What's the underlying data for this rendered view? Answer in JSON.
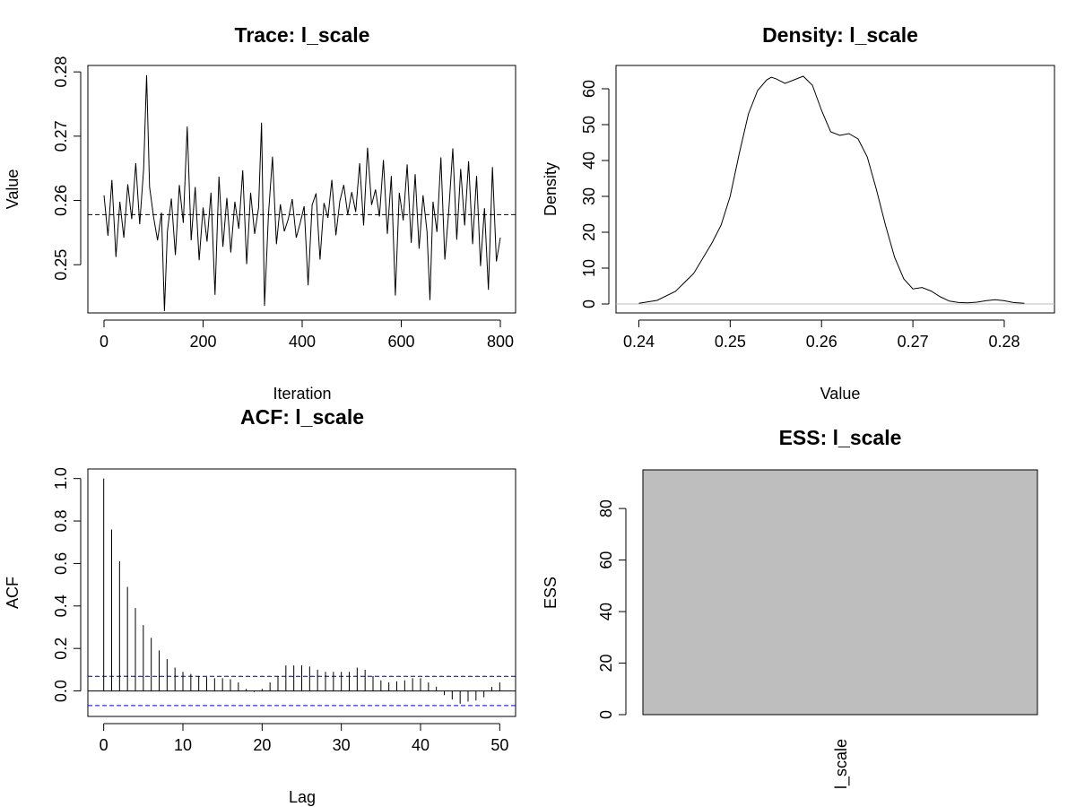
{
  "chart_data": [
    {
      "type": "line",
      "title": "Trace: l_scale",
      "xlabel": "Iteration",
      "ylabel": "Value",
      "xlim": [
        0,
        800
      ],
      "ylim": [
        0.2425,
        0.281
      ],
      "xticks": [
        "0",
        "200",
        "400",
        "600",
        "800"
      ],
      "yticks": [
        "0.25",
        "0.26",
        "0.27",
        "0.28"
      ],
      "mean_line": 0.2578,
      "mean_line_style": "dashed",
      "x": [
        0,
        8,
        16,
        24,
        32,
        40,
        48,
        56,
        64,
        72,
        80,
        86,
        92,
        100,
        108,
        116,
        122,
        128,
        136,
        144,
        152,
        160,
        168,
        176,
        184,
        192,
        200,
        208,
        216,
        224,
        232,
        240,
        248,
        256,
        264,
        272,
        280,
        288,
        296,
        304,
        312,
        318,
        324,
        332,
        340,
        348,
        356,
        364,
        372,
        380,
        388,
        396,
        404,
        412,
        420,
        428,
        436,
        444,
        452,
        460,
        468,
        476,
        484,
        492,
        500,
        508,
        516,
        524,
        532,
        540,
        548,
        556,
        564,
        572,
        580,
        588,
        596,
        604,
        612,
        620,
        628,
        636,
        644,
        652,
        658,
        664,
        672,
        680,
        688,
        696,
        704,
        712,
        720,
        728,
        736,
        744,
        752,
        760,
        768,
        776,
        784,
        792,
        800
      ],
      "y": [
        0.2608,
        0.2545,
        0.2632,
        0.2512,
        0.2598,
        0.2542,
        0.2625,
        0.2571,
        0.2658,
        0.2563,
        0.2649,
        0.2795,
        0.2621,
        0.2574,
        0.2538,
        0.2581,
        0.2428,
        0.2552,
        0.2603,
        0.2515,
        0.2624,
        0.2565,
        0.2715,
        0.2538,
        0.2621,
        0.2507,
        0.2589,
        0.2536,
        0.2612,
        0.2453,
        0.2637,
        0.2528,
        0.2604,
        0.2519,
        0.2598,
        0.2556,
        0.2647,
        0.2501,
        0.2612,
        0.2548,
        0.2589,
        0.2721,
        0.2436,
        0.2578,
        0.2668,
        0.2532,
        0.2594,
        0.2552,
        0.2571,
        0.2602,
        0.2542,
        0.2565,
        0.2591,
        0.2468,
        0.2593,
        0.2611,
        0.2508,
        0.2596,
        0.2573,
        0.2632,
        0.2546,
        0.2599,
        0.2624,
        0.2578,
        0.2613,
        0.2582,
        0.2658,
        0.2561,
        0.2682,
        0.2593,
        0.2617,
        0.2575,
        0.2663,
        0.2548,
        0.2638,
        0.2452,
        0.2612,
        0.2569,
        0.2656,
        0.2534,
        0.2641,
        0.2525,
        0.2608,
        0.2552,
        0.2445,
        0.2598,
        0.2551,
        0.2667,
        0.2508,
        0.2584,
        0.2681,
        0.2539,
        0.2649,
        0.2561,
        0.2661,
        0.2532,
        0.2638,
        0.2498,
        0.2588,
        0.2461,
        0.2652,
        0.2505,
        0.2542
      ]
    },
    {
      "type": "line",
      "title": "Density: l_scale",
      "xlabel": "Value",
      "ylabel": "Density",
      "xlim": [
        0.2375,
        0.2855
      ],
      "ylim": [
        -2.5,
        66.5
      ],
      "xticks": [
        "0.24",
        "0.25",
        "0.26",
        "0.27",
        "0.28"
      ],
      "yticks": [
        "0",
        "10",
        "20",
        "30",
        "40",
        "50",
        "60"
      ],
      "baseline": 0,
      "baseline_color": "#bebebe",
      "x": [
        0.24,
        0.242,
        0.244,
        0.246,
        0.248,
        0.249,
        0.25,
        0.251,
        0.252,
        0.253,
        0.254,
        0.2545,
        0.255,
        0.256,
        0.257,
        0.258,
        0.259,
        0.26,
        0.261,
        0.262,
        0.263,
        0.264,
        0.265,
        0.266,
        0.267,
        0.268,
        0.269,
        0.27,
        0.271,
        0.272,
        0.273,
        0.274,
        0.275,
        0.276,
        0.277,
        0.278,
        0.279,
        0.28,
        0.281,
        0.2822
      ],
      "y": [
        0.2,
        1.0,
        3.5,
        8.5,
        17.0,
        22.0,
        30.0,
        42.0,
        53.0,
        59.5,
        62.5,
        63.2,
        62.8,
        61.5,
        62.5,
        63.5,
        61.0,
        54.0,
        48.0,
        47.0,
        47.5,
        46.0,
        41.0,
        32.0,
        22.0,
        13.0,
        7.0,
        4.2,
        4.6,
        3.6,
        2.0,
        0.8,
        0.4,
        0.3,
        0.5,
        0.9,
        1.2,
        0.9,
        0.4,
        0.2
      ]
    },
    {
      "type": "bar",
      "title": "ACF: l_scale",
      "xlabel": "Lag",
      "ylabel": "ACF",
      "xlim": [
        -2,
        52
      ],
      "ylim": [
        -0.12,
        1.045
      ],
      "xticks": [
        "0",
        "10",
        "20",
        "30",
        "40",
        "50"
      ],
      "yticks": [
        "0.0",
        "0.2",
        "0.4",
        "0.6",
        "0.8",
        "1.0"
      ],
      "ci_bounds": [
        0.069,
        -0.069
      ],
      "ci_colors": [
        "#000080",
        "#0000ff"
      ],
      "lags": [
        0,
        1,
        2,
        3,
        4,
        5,
        6,
        7,
        8,
        9,
        10,
        11,
        12,
        13,
        14,
        15,
        16,
        17,
        18,
        19,
        20,
        21,
        22,
        23,
        24,
        25,
        26,
        27,
        28,
        29,
        30,
        31,
        32,
        33,
        34,
        35,
        36,
        37,
        38,
        39,
        40,
        41,
        42,
        43,
        44,
        45,
        46,
        47,
        48,
        49,
        50
      ],
      "values": [
        1.0,
        0.76,
        0.61,
        0.49,
        0.39,
        0.31,
        0.25,
        0.19,
        0.15,
        0.11,
        0.09,
        0.08,
        0.07,
        0.065,
        0.06,
        0.06,
        0.055,
        0.04,
        0.01,
        -0.005,
        0.01,
        0.04,
        0.07,
        0.12,
        0.12,
        0.12,
        0.115,
        0.1,
        0.09,
        0.09,
        0.09,
        0.09,
        0.11,
        0.1,
        0.07,
        0.05,
        0.04,
        0.045,
        0.05,
        0.06,
        0.06,
        0.04,
        0.02,
        -0.02,
        -0.04,
        -0.06,
        -0.05,
        -0.045,
        -0.03,
        0.02,
        0.04
      ]
    },
    {
      "type": "bar",
      "title": "ESS: l_scale",
      "xlabel": "",
      "ylabel": "ESS",
      "ylim": [
        0,
        95
      ],
      "yticks": [
        "0",
        "20",
        "40",
        "60",
        "80"
      ],
      "categories": [
        "l_scale"
      ],
      "values": [
        95
      ],
      "bar_color": "#bebebe"
    }
  ]
}
